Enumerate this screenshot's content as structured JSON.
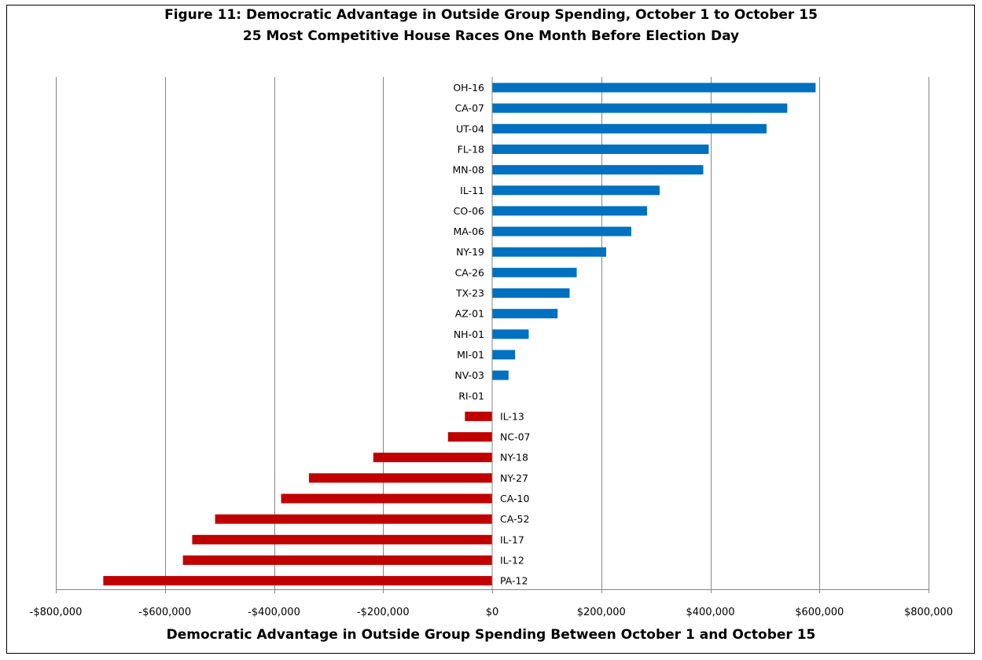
{
  "chart_data": {
    "type": "bar",
    "orientation": "horizontal",
    "title": "Figure 11: Democratic Advantage in Outside Group Spending, October 1 to October 15",
    "subtitle": "25 Most Competitive House Races One Month Before Election Day",
    "xlabel": "Democratic Advantage in Outside Group Spending Between October 1 and October 15",
    "ylabel": "",
    "xlim": [
      -800000,
      800000
    ],
    "x_ticks": [
      -800000,
      -600000,
      -400000,
      -200000,
      0,
      200000,
      400000,
      600000,
      800000
    ],
    "x_tick_labels": [
      "-$800,000",
      "-$600,000",
      "-$400,000",
      "-$200,000",
      "$0",
      "$200,000",
      "$400,000",
      "$600,000",
      "$800,000"
    ],
    "grid": "vertical",
    "legend": "none",
    "colors": {
      "positive": "#0070C0",
      "negative": "#C00000"
    },
    "categories": [
      "OH-16",
      "CA-07",
      "UT-04",
      "FL-18",
      "MN-08",
      "IL-11",
      "CO-06",
      "MA-06",
      "NY-19",
      "CA-26",
      "TX-23",
      "AZ-01",
      "NH-01",
      "MI-01",
      "NV-03",
      "RI-01",
      "IL-13",
      "NC-07",
      "NY-18",
      "NY-27",
      "CA-10",
      "CA-52",
      "IL-17",
      "IL-12",
      "PA-12"
    ],
    "values": [
      593000,
      541000,
      503000,
      397000,
      387000,
      307000,
      284000,
      255000,
      209000,
      155000,
      142000,
      120000,
      67000,
      42000,
      30000,
      0,
      -50000,
      -81000,
      -218000,
      -336000,
      -387000,
      -508000,
      -550000,
      -567000,
      -713000
    ]
  }
}
